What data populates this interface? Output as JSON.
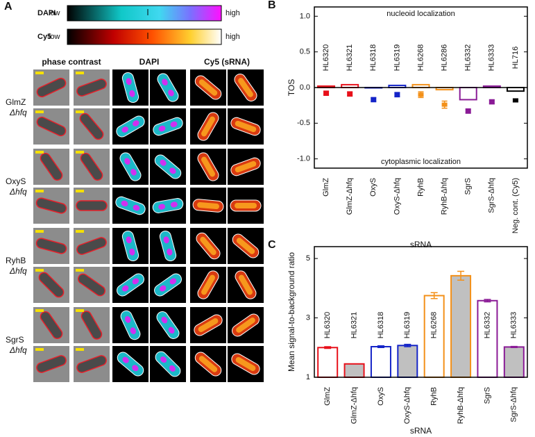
{
  "panel_a": {
    "label": "A",
    "colorbars": [
      {
        "name": "DAPI",
        "low": "low",
        "high": "high"
      },
      {
        "name": "Cy5",
        "low": "low",
        "high": "high"
      }
    ],
    "columns": [
      "phase contrast",
      "DAPI",
      "Cy5 (sRNA)"
    ],
    "rows": [
      {
        "name": "GlmZ",
        "mutant": "Δhfq"
      },
      {
        "name": "OxyS",
        "mutant": "Δhfq"
      },
      {
        "name": "RyhB",
        "mutant": "Δhfq"
      },
      {
        "name": "SgrS",
        "mutant": "Δhfq"
      }
    ]
  },
  "chart_data": [
    {
      "type": "bar",
      "panel_label": "B",
      "ylabel": "TOS",
      "xlabel": "sRNA",
      "annotations": [
        "nucleoid localization",
        "cytoplasmic localization"
      ],
      "categories": [
        "GlmZ",
        "GlmZ-Δhfq",
        "OxyS",
        "OxyS-Δhfq",
        "RyhB",
        "RyhB-Δhfq",
        "SgrS",
        "SgrS-Δhfq",
        "Neg. cont. (Cy5)"
      ],
      "strains": [
        "HL6320",
        "HL6321",
        "HL6318",
        "HL6319",
        "HL6268",
        "HL6286",
        "HL6332",
        "HL6333",
        "HL716"
      ],
      "colors": [
        "#e8101a",
        "#e8101a",
        "#1424c8",
        "#1424c8",
        "#f39019",
        "#f39019",
        "#8a1a96",
        "#8a1a96",
        "#000000"
      ],
      "values": [
        0.02,
        0.04,
        0.0,
        0.03,
        0.04,
        -0.03,
        -0.17,
        0.02,
        -0.05
      ],
      "points": [
        -0.08,
        -0.09,
        -0.17,
        -0.1,
        -0.1,
        -0.24,
        -0.33,
        -0.2,
        -0.18
      ],
      "errors": [
        0.03,
        0.03,
        0.03,
        0.03,
        0.04,
        0.05,
        0.03,
        0.03,
        0.02
      ],
      "ylim": [
        -1.13,
        1.13
      ],
      "yticks": [
        {
          "value": 1,
          "label": "1.0"
        },
        0.5,
        {
          "value": 0,
          "label": "0.0"
        },
        -0.5,
        {
          "value": -1,
          "label": "-1.0"
        }
      ]
    },
    {
      "type": "bar",
      "panel_label": "C",
      "ylabel": "Mean signal-to-background ratio",
      "xlabel": "sRNA",
      "categories": [
        "GlmZ",
        "GlmZ-Δhfq",
        "OxyS",
        "OxyS-Δhfq",
        "RyhB",
        "RyhB-Δhfq",
        "SgrS",
        "SgrS-Δhfq"
      ],
      "strains": [
        "HL6320",
        "HL6321",
        "HL6318",
        "HL6319",
        "HL6268",
        "HL6286",
        "HL6332",
        "HL6333"
      ],
      "colors": [
        "#e8101a",
        "#e8101a",
        "#1424c8",
        "#1424c8",
        "#f39019",
        "#f39019",
        "#8a1a96",
        "#8a1a96"
      ],
      "fills": [
        "none",
        "#c0c0c0",
        "none",
        "#c0c0c0",
        "none",
        "#c0c0c0",
        "none",
        "#c0c0c0"
      ],
      "values": [
        2.0,
        1.45,
        2.03,
        2.07,
        3.75,
        4.42,
        3.58,
        2.02
      ],
      "errors": [
        0.03,
        0.0,
        0.03,
        0.04,
        0.1,
        0.15,
        0.04,
        0.02
      ],
      "ylim": [
        1,
        5.4
      ],
      "yticks": [
        1,
        3,
        5
      ]
    }
  ]
}
